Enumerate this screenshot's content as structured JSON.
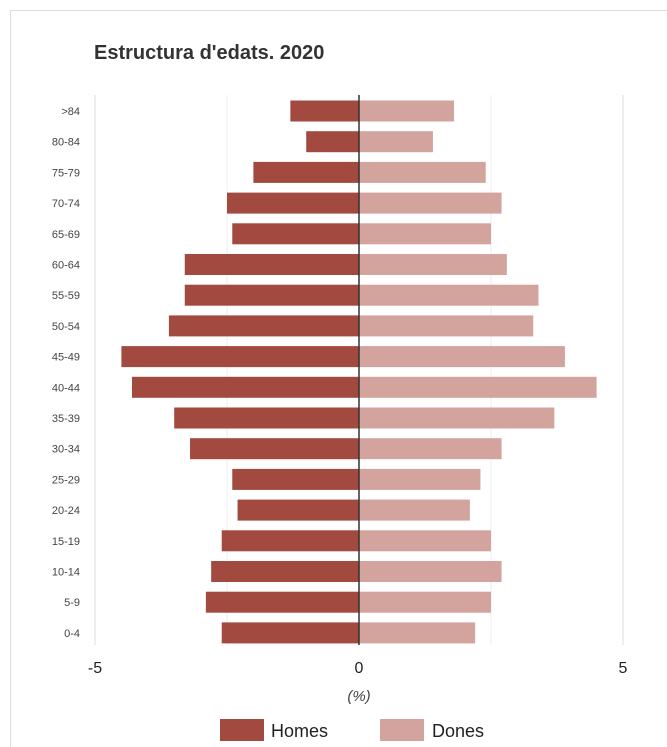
{
  "chart_data": {
    "type": "bar",
    "orientation": "horizontal",
    "title": "Estructura d'edats. 2020",
    "xlabel": "(%)",
    "xlim": [
      -5,
      5
    ],
    "x_ticks": [
      "-5",
      "0",
      "5"
    ],
    "grid": true,
    "legend_position": "bottom",
    "categories": [
      ">84",
      "80-84",
      "75-79",
      "70-74",
      "65-69",
      "60-64",
      "55-59",
      "50-54",
      "45-49",
      "40-44",
      "35-39",
      "30-34",
      "25-29",
      "20-24",
      "15-19",
      "10-14",
      "5-9",
      "0-4"
    ],
    "series": [
      {
        "name": "Homes",
        "color": "#a34a40",
        "values": [
          -1.3,
          -1.0,
          -2.0,
          -2.5,
          -2.4,
          -3.3,
          -3.3,
          -3.6,
          -4.5,
          -4.3,
          -3.5,
          -3.2,
          -2.4,
          -2.3,
          -2.6,
          -2.8,
          -2.9,
          -2.6
        ]
      },
      {
        "name": "Dones",
        "color": "#d3a39d",
        "values": [
          1.8,
          1.4,
          2.4,
          2.7,
          2.5,
          2.8,
          3.4,
          3.3,
          3.9,
          4.5,
          3.7,
          2.7,
          2.3,
          2.1,
          2.5,
          2.7,
          2.5,
          2.2
        ]
      }
    ]
  }
}
